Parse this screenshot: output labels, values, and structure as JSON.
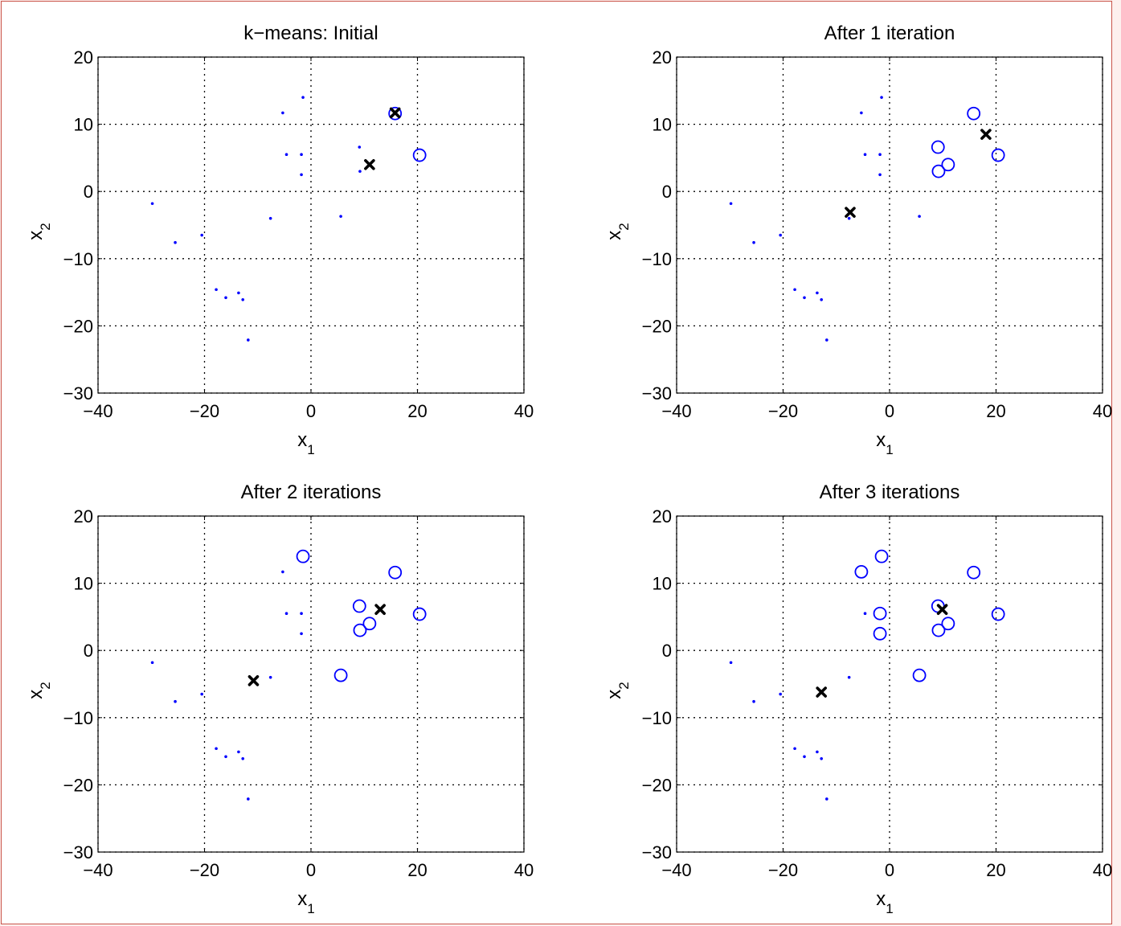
{
  "chart_data": [
    {
      "type": "scatter",
      "title": "k−means: Initial",
      "xlabel": "x",
      "xlabel_sub": "1",
      "ylabel": "x",
      "ylabel_sub": "2",
      "xlim": [
        -40,
        40
      ],
      "ylim": [
        -30,
        20
      ],
      "xticks": [
        -40,
        -20,
        0,
        20,
        40
      ],
      "yticks": [
        -30,
        -20,
        -10,
        0,
        10,
        20
      ],
      "xtick_labels": [
        "−40",
        "−20",
        "0",
        "20",
        "40"
      ],
      "ytick_labels": [
        "−30",
        "−20",
        "−10",
        "0",
        "10",
        "20"
      ],
      "grid": true,
      "points": [
        [
          -29.8,
          -1.8
        ],
        [
          -25.5,
          -7.6
        ],
        [
          -20.5,
          -6.5
        ],
        [
          -17.8,
          -14.6
        ],
        [
          -16,
          -15.8
        ],
        [
          -13.6,
          -15.1
        ],
        [
          -12.8,
          -16.1
        ],
        [
          -11.8,
          -22.1
        ],
        [
          -7.6,
          -4
        ],
        [
          -5.3,
          11.7
        ],
        [
          -4.6,
          5.5
        ],
        [
          -1.8,
          5.5
        ],
        [
          -1.5,
          14
        ],
        [
          -1.8,
          2.5
        ],
        [
          5.6,
          -3.7
        ],
        [
          9.1,
          6.6
        ],
        [
          9.2,
          3
        ],
        [
          11,
          4
        ],
        [
          15.8,
          11.6
        ],
        [
          20.4,
          5.4
        ]
      ],
      "assigned_indices": [
        18,
        19
      ],
      "centroids": [
        [
          15.8,
          11.7
        ],
        [
          11,
          4
        ]
      ],
      "colors": {
        "points": "#0000ff",
        "centroids": "#000000"
      }
    },
    {
      "type": "scatter",
      "title": "After 1 iteration",
      "xlabel": "x",
      "xlabel_sub": "1",
      "ylabel": "x",
      "ylabel_sub": "2",
      "xlim": [
        -40,
        40
      ],
      "ylim": [
        -30,
        20
      ],
      "xticks": [
        -40,
        -20,
        0,
        20,
        40
      ],
      "yticks": [
        -30,
        -20,
        -10,
        0,
        10,
        20
      ],
      "xtick_labels": [
        "−40",
        "−20",
        "0",
        "20",
        "40"
      ],
      "ytick_labels": [
        "−30",
        "−20",
        "−10",
        "0",
        "10",
        "20"
      ],
      "grid": true,
      "points": [
        [
          -29.8,
          -1.8
        ],
        [
          -25.5,
          -7.6
        ],
        [
          -20.5,
          -6.5
        ],
        [
          -17.8,
          -14.6
        ],
        [
          -16,
          -15.8
        ],
        [
          -13.6,
          -15.1
        ],
        [
          -12.8,
          -16.1
        ],
        [
          -11.8,
          -22.1
        ],
        [
          -7.6,
          -4
        ],
        [
          -5.3,
          11.7
        ],
        [
          -4.6,
          5.5
        ],
        [
          -1.8,
          5.5
        ],
        [
          -1.5,
          14
        ],
        [
          -1.8,
          2.5
        ],
        [
          5.6,
          -3.7
        ],
        [
          9.1,
          6.6
        ],
        [
          9.2,
          3
        ],
        [
          11,
          4
        ],
        [
          15.8,
          11.6
        ],
        [
          20.4,
          5.4
        ]
      ],
      "assigned_indices": [
        15,
        16,
        17,
        18,
        19
      ],
      "centroids": [
        [
          18.1,
          8.5
        ],
        [
          -7.4,
          -3.1
        ]
      ],
      "colors": {
        "points": "#0000ff",
        "centroids": "#000000"
      }
    },
    {
      "type": "scatter",
      "title": "After 2 iterations",
      "xlabel": "x",
      "xlabel_sub": "1",
      "ylabel": "x",
      "ylabel_sub": "2",
      "xlim": [
        -40,
        40
      ],
      "ylim": [
        -30,
        20
      ],
      "xticks": [
        -40,
        -20,
        0,
        20,
        40
      ],
      "yticks": [
        -30,
        -20,
        -10,
        0,
        10,
        20
      ],
      "xtick_labels": [
        "−40",
        "−20",
        "0",
        "20",
        "40"
      ],
      "ytick_labels": [
        "−30",
        "−20",
        "−10",
        "0",
        "10",
        "20"
      ],
      "grid": true,
      "points": [
        [
          -29.8,
          -1.8
        ],
        [
          -25.5,
          -7.6
        ],
        [
          -20.5,
          -6.5
        ],
        [
          -17.8,
          -14.6
        ],
        [
          -16,
          -15.8
        ],
        [
          -13.6,
          -15.1
        ],
        [
          -12.8,
          -16.1
        ],
        [
          -11.8,
          -22.1
        ],
        [
          -7.6,
          -4
        ],
        [
          -5.3,
          11.7
        ],
        [
          -4.6,
          5.5
        ],
        [
          -1.8,
          5.5
        ],
        [
          -1.5,
          14
        ],
        [
          -1.8,
          2.5
        ],
        [
          5.6,
          -3.7
        ],
        [
          9.1,
          6.6
        ],
        [
          9.2,
          3
        ],
        [
          11,
          4
        ],
        [
          15.8,
          11.6
        ],
        [
          20.4,
          5.4
        ]
      ],
      "assigned_indices": [
        12,
        14,
        15,
        16,
        17,
        18,
        19
      ],
      "centroids": [
        [
          13,
          6.1
        ],
        [
          -10.8,
          -4.5
        ]
      ],
      "colors": {
        "points": "#0000ff",
        "centroids": "#000000"
      }
    },
    {
      "type": "scatter",
      "title": "After 3 iterations",
      "xlabel": "x",
      "xlabel_sub": "1",
      "ylabel": "x",
      "ylabel_sub": "2",
      "xlim": [
        -40,
        40
      ],
      "ylim": [
        -30,
        20
      ],
      "xticks": [
        -40,
        -20,
        0,
        20,
        40
      ],
      "yticks": [
        -30,
        -20,
        -10,
        0,
        10,
        20
      ],
      "xtick_labels": [
        "−40",
        "−20",
        "0",
        "20",
        "40"
      ],
      "ytick_labels": [
        "−30",
        "−20",
        "−10",
        "0",
        "10",
        "20"
      ],
      "grid": true,
      "points": [
        [
          -29.8,
          -1.8
        ],
        [
          -25.5,
          -7.6
        ],
        [
          -20.5,
          -6.5
        ],
        [
          -17.8,
          -14.6
        ],
        [
          -16,
          -15.8
        ],
        [
          -13.6,
          -15.1
        ],
        [
          -12.8,
          -16.1
        ],
        [
          -11.8,
          -22.1
        ],
        [
          -7.6,
          -4
        ],
        [
          -5.3,
          11.7
        ],
        [
          -4.6,
          5.5
        ],
        [
          -1.8,
          5.5
        ],
        [
          -1.5,
          14
        ],
        [
          -1.8,
          2.5
        ],
        [
          5.6,
          -3.7
        ],
        [
          9.1,
          6.6
        ],
        [
          9.2,
          3
        ],
        [
          11,
          4
        ],
        [
          15.8,
          11.6
        ],
        [
          20.4,
          5.4
        ]
      ],
      "assigned_indices": [
        9,
        11,
        12,
        13,
        14,
        15,
        16,
        17,
        18,
        19
      ],
      "centroids": [
        [
          9.9,
          6.1
        ],
        [
          -12.8,
          -6.2
        ]
      ],
      "colors": {
        "points": "#0000ff",
        "centroids": "#000000"
      }
    }
  ]
}
